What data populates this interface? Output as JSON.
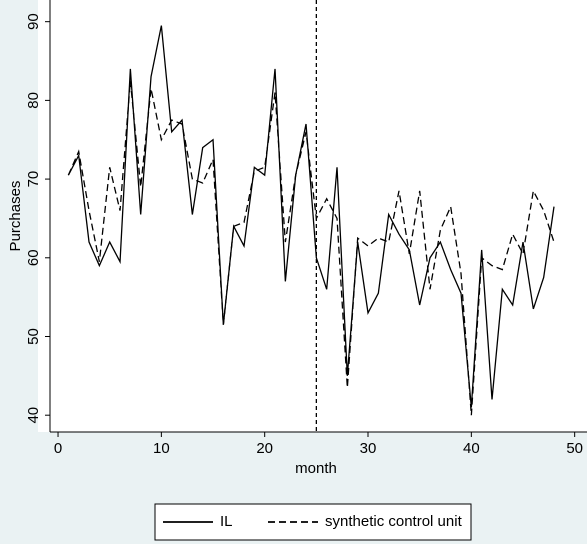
{
  "chart_data": {
    "type": "line",
    "x_label": "month",
    "y_label": "Purchases",
    "x": [
      1,
      2,
      3,
      4,
      5,
      6,
      7,
      8,
      9,
      10,
      11,
      12,
      13,
      14,
      15,
      16,
      17,
      18,
      19,
      20,
      21,
      22,
      23,
      24,
      25,
      26,
      27,
      28,
      29,
      30,
      31,
      32,
      33,
      34,
      35,
      36,
      37,
      38,
      39,
      40,
      41,
      42,
      43,
      44,
      45,
      46,
      47,
      48
    ],
    "series": [
      {
        "name": "IL",
        "color": "#000000",
        "line_style": "solid",
        "values": [
          70.5,
          73,
          62,
          59,
          62,
          59.5,
          84,
          65.5,
          83,
          89.5,
          76,
          77.5,
          65.5,
          74,
          75,
          51.5,
          64,
          61.5,
          71.5,
          70.5,
          84,
          57,
          70.5,
          77,
          60,
          56,
          71.5,
          45,
          62,
          53,
          55.5,
          65.5,
          63,
          61,
          54,
          60,
          62,
          58.5,
          55.5,
          41,
          61,
          42,
          56,
          54,
          62,
          53.5,
          57.5,
          66.5
        ]
      },
      {
        "name": "synthetic control unit",
        "color": "#000000",
        "line_style": "dashed",
        "values": [
          70.5,
          73.5,
          66,
          59.5,
          71.5,
          66,
          82.5,
          69,
          81.5,
          75,
          77.5,
          77,
          70,
          69.5,
          72.5,
          51.5,
          64,
          64.5,
          71,
          71.5,
          81,
          62,
          70.5,
          76,
          65,
          67.5,
          65,
          43.5,
          62.5,
          61.5,
          62.5,
          62,
          68.5,
          60.5,
          68.5,
          56,
          63.5,
          66.5,
          58,
          40,
          60,
          59,
          58.5,
          63,
          60.5,
          68.5,
          66,
          62
        ]
      }
    ],
    "vline": 25,
    "xlim": [
      -1,
      51
    ],
    "xticks": [
      0,
      10,
      20,
      30,
      40,
      50
    ],
    "ylim": [
      38.5,
      92.5
    ],
    "yticks": [
      40,
      50,
      60,
      70,
      80,
      90
    ]
  }
}
